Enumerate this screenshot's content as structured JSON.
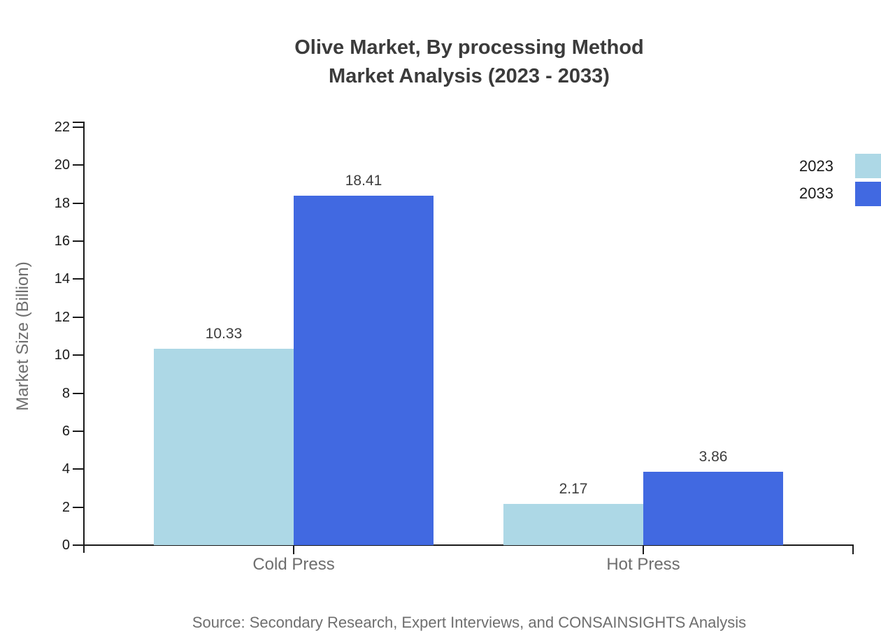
{
  "title": {
    "line1": "Olive Market, By processing Method",
    "line2": "Market Analysis (2023 - 2033)"
  },
  "chart_data": {
    "type": "bar",
    "title": "Olive Market, By processing Method Market Analysis (2023 - 2033)",
    "categories": [
      "Cold Press",
      "Hot Press"
    ],
    "series": [
      {
        "name": "2023",
        "color": "#ADD8E6",
        "values": [
          10.33,
          2.17
        ]
      },
      {
        "name": "2033",
        "color": "#4169E1",
        "values": [
          18.41,
          3.86
        ]
      }
    ],
    "value_labels": [
      "10.33",
      "18.41",
      "2.17",
      "3.86"
    ],
    "xlabel": "",
    "ylabel": "Market Size (Billion)",
    "ylim": [
      0,
      22
    ],
    "yticks": [
      0,
      2,
      4,
      6,
      8,
      10,
      12,
      14,
      16,
      18,
      20,
      22
    ],
    "grid": false,
    "legend_position": "top-right-edge"
  },
  "source": "Source: Secondary Research, Expert Interviews, and CONSAINSIGHTS Analysis",
  "colors": {
    "series_2023": "#ADD8E6",
    "series_2033": "#4169E1",
    "axis": "#1a1a1a",
    "title_text": "#3b3b3b",
    "muted_text": "#6e6e6e",
    "value_text": "#3d3d3d"
  }
}
